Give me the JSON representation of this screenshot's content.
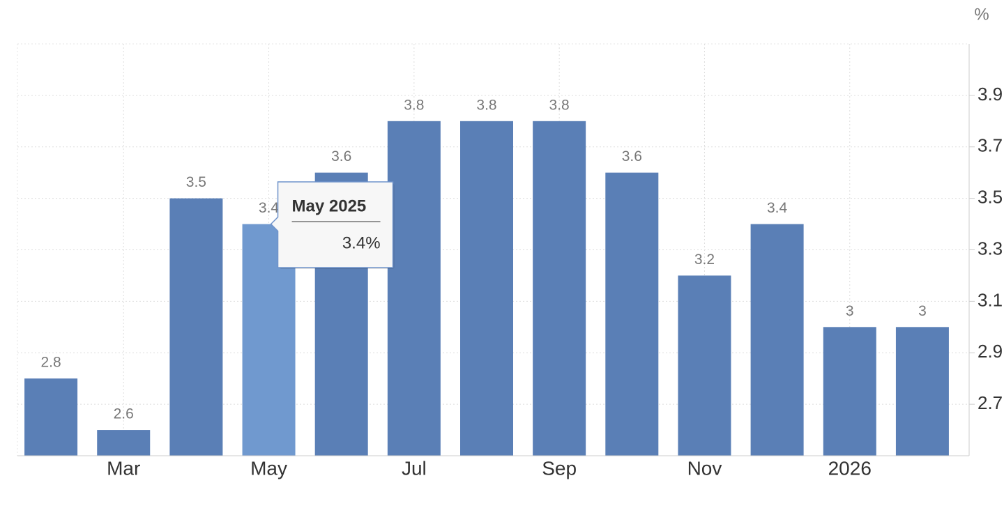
{
  "chart_data": {
    "type": "bar",
    "unit_label": "%",
    "categories": [
      null,
      "Mar",
      null,
      "May",
      null,
      "Jul",
      null,
      "Sep",
      null,
      "Nov",
      null,
      "2026",
      null
    ],
    "values": [
      2.8,
      2.6,
      3.5,
      3.4,
      3.6,
      3.8,
      3.8,
      3.8,
      3.6,
      3.2,
      3.4,
      3,
      3
    ],
    "color": "#5a7fb6",
    "highlight": {
      "index": 3,
      "color": "#7099cf"
    },
    "tooltip": {
      "title": "May 2025",
      "value": "3.4%"
    },
    "ylim": [
      2.5,
      4.1
    ],
    "yticks": [
      2.7,
      2.9,
      3.1,
      3.3,
      3.5,
      3.7,
      3.9
    ],
    "grid": true
  }
}
